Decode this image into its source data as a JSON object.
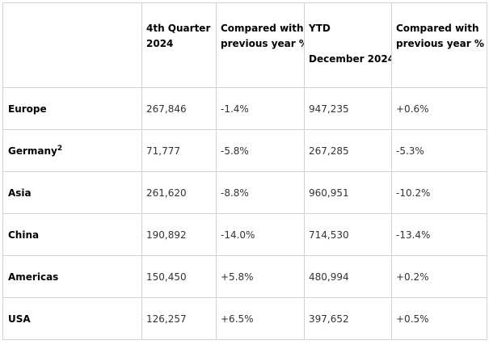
{
  "table": {
    "headers": {
      "region": "",
      "q4_line1": "4th Quarter",
      "q4_line2": "2024",
      "cmp1_line1": "Compared with",
      "cmp1_line2": "previous year %",
      "ytd_line1": "YTD",
      "ytd_line2": "December 2024",
      "cmp2_line1": "Compared with",
      "cmp2_line2": "previous year %"
    },
    "rows": [
      {
        "region": "Europe",
        "sup": "",
        "q4": "267,846",
        "q4_change": "-1.4%",
        "ytd": "947,235",
        "ytd_change": "+0.6%"
      },
      {
        "region": "Germany",
        "sup": "2",
        "q4": "71,777",
        "q4_change": "-5.8%",
        "ytd": "267,285",
        "ytd_change": "-5.3%"
      },
      {
        "region": "Asia",
        "sup": "",
        "q4": "261,620",
        "q4_change": "-8.8%",
        "ytd": "960,951",
        "ytd_change": "-10.2%"
      },
      {
        "region": "China",
        "sup": "",
        "q4": "190,892",
        "q4_change": "-14.0%",
        "ytd": "714,530",
        "ytd_change": "-13.4%"
      },
      {
        "region": "Americas",
        "sup": "",
        "q4": "150,450",
        "q4_change": "+5.8%",
        "ytd": "480,994",
        "ytd_change": "+0.2%"
      },
      {
        "region": "USA",
        "sup": "",
        "q4": "126,257",
        "q4_change": "+6.5%",
        "ytd": "397,652",
        "ytd_change": "+0.5%"
      }
    ]
  }
}
